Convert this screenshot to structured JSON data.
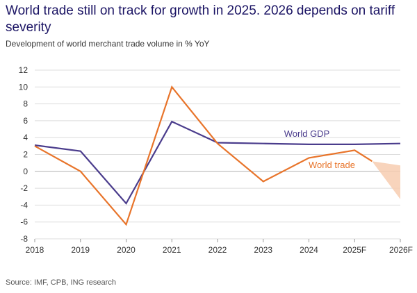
{
  "header": {
    "title": "World trade still on track for growth in 2025. 2026 depends on tariff severity",
    "subtitle": "Development of world merchant trade volume in % YoY"
  },
  "footer": {
    "source": "Source: IMF, CPB, ING research"
  },
  "colors": {
    "gdp": "#4a3c8c",
    "trade": "#e8742a",
    "forecast_band": "#f7cdb0",
    "grid": "#dddddd"
  },
  "chart_data": {
    "type": "line",
    "title": "World trade still on track for growth in 2025. 2026 depends on tariff severity",
    "subtitle": "Development of world merchant trade volume in % YoY",
    "xlabel": "",
    "ylabel": "",
    "categories": [
      "2018",
      "2019",
      "2020",
      "2021",
      "2022",
      "2023",
      "2024",
      "2025F",
      "2026F"
    ],
    "ylim": [
      -8,
      12
    ],
    "yticks": [
      -8,
      -6,
      -4,
      -2,
      0,
      2,
      4,
      6,
      8,
      10,
      12
    ],
    "grid": true,
    "series": [
      {
        "name": "World GDP",
        "values": [
          3.1,
          2.4,
          -3.8,
          5.9,
          3.4,
          3.3,
          3.2,
          3.2,
          3.3
        ]
      },
      {
        "name": "World trade",
        "values": [
          3.0,
          0.0,
          -6.3,
          10.0,
          3.3,
          -1.2,
          1.6,
          2.5,
          null
        ]
      }
    ],
    "forecast_band": {
      "x_start": "2025F",
      "y_start": 1.2,
      "x_end": "2026F",
      "y_low": -3.3,
      "y_high": 0.7
    }
  }
}
